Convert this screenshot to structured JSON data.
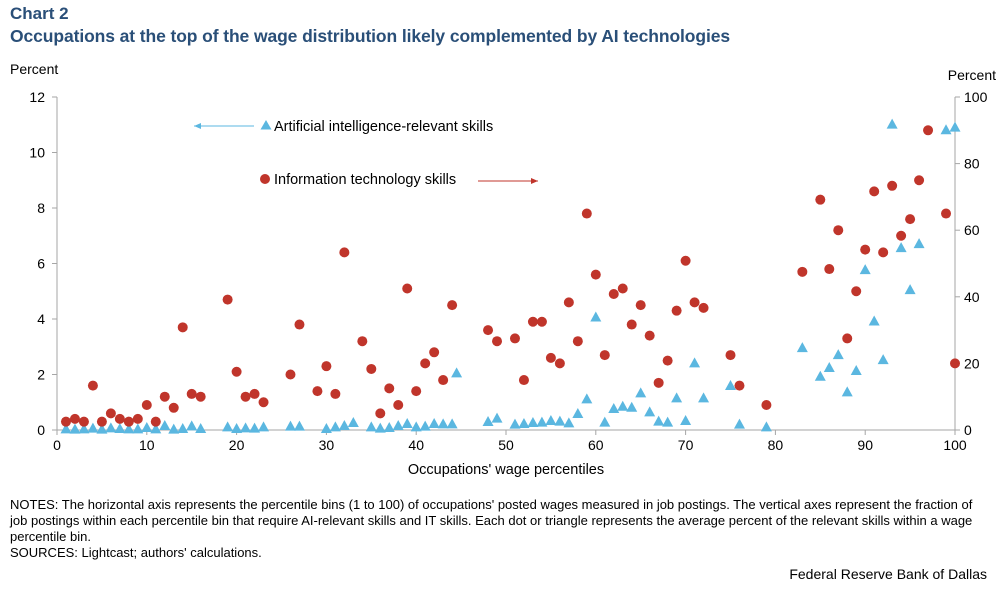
{
  "header": {
    "chart_label": "Chart 2",
    "title": "Occupations at the top of the wage distribution likely complemented by AI technologies"
  },
  "notes": {
    "text": "NOTES: The horizontal axis represents the percentile bins (1 to 100) of occupations' posted wages measured in job postings. The vertical axes represent the fraction of job postings within each percentile bin that require AI-relevant skills and IT skills. Each dot or triangle represents the average percent of the relevant skills within a wage percentile bin.",
    "sources": "SOURCES: Lightcast; authors' calculations."
  },
  "footer": {
    "organization": "Federal Reserve Bank of Dallas"
  },
  "colors": {
    "ai": "#5bb7e0",
    "it": "#c0352b",
    "title": "#2a4f78",
    "axis": "#a6a6a6"
  },
  "chart_data": {
    "type": "scatter",
    "xlabel": "Occupations' wage percentiles",
    "ylabel_left": "Percent",
    "ylabel_right": "Percent",
    "xlim": [
      0,
      100
    ],
    "ylim_left": [
      0,
      12
    ],
    "ylim_right": [
      0,
      100
    ],
    "x_ticks": [
      0,
      10,
      20,
      30,
      40,
      50,
      60,
      70,
      80,
      90,
      100
    ],
    "y_ticks_left": [
      0,
      2,
      4,
      6,
      8,
      10,
      12
    ],
    "y_ticks_right": [
      0,
      20,
      40,
      60,
      80,
      100
    ],
    "grid": false,
    "series": [
      {
        "name": "Artificial intelligence-relevant skills",
        "axis": "right",
        "marker": "triangle",
        "legend_arrow": "left",
        "points": [
          [
            1,
            0.2
          ],
          [
            2,
            0.1
          ],
          [
            3,
            0.2
          ],
          [
            4,
            0.4
          ],
          [
            5,
            0.1
          ],
          [
            6,
            0.5
          ],
          [
            7,
            0.3
          ],
          [
            8,
            0.2
          ],
          [
            9,
            0.2
          ],
          [
            10,
            0.6
          ],
          [
            11,
            0.2
          ],
          [
            12,
            1.2
          ],
          [
            13,
            0.1
          ],
          [
            14,
            0.3
          ],
          [
            15,
            1.1
          ],
          [
            16,
            0.3
          ],
          [
            19,
            0.8
          ],
          [
            20,
            0.3
          ],
          [
            21,
            0.5
          ],
          [
            22,
            0.4
          ],
          [
            23,
            0.8
          ],
          [
            26,
            1.0
          ],
          [
            27,
            1.0
          ],
          [
            30,
            0.3
          ],
          [
            31,
            0.8
          ],
          [
            32,
            1.2
          ],
          [
            33,
            2.1
          ],
          [
            35,
            0.8
          ],
          [
            36,
            0.4
          ],
          [
            37,
            0.6
          ],
          [
            38,
            1.2
          ],
          [
            39,
            1.8
          ],
          [
            40,
            0.8
          ],
          [
            41,
            1.0
          ],
          [
            42,
            1.8
          ],
          [
            43,
            1.7
          ],
          [
            44,
            1.7
          ],
          [
            44.5,
            17
          ],
          [
            48,
            2.4
          ],
          [
            49,
            3.4
          ],
          [
            51,
            1.6
          ],
          [
            52,
            1.8
          ],
          [
            53,
            2.1
          ],
          [
            54,
            2.2
          ],
          [
            55,
            2.7
          ],
          [
            56,
            2.5
          ],
          [
            57,
            2.0
          ],
          [
            58,
            4.8
          ],
          [
            59,
            9.2
          ],
          [
            60,
            33.8
          ],
          [
            61,
            2.2
          ],
          [
            62,
            6.3
          ],
          [
            63,
            7.0
          ],
          [
            64,
            6.7
          ],
          [
            65,
            11.0
          ],
          [
            66,
            5.3
          ],
          [
            67,
            2.5
          ],
          [
            68,
            2.2
          ],
          [
            69,
            9.5
          ],
          [
            70,
            2.7
          ],
          [
            71,
            20.0
          ],
          [
            72,
            9.5
          ],
          [
            75,
            13.2
          ],
          [
            76,
            1.6
          ],
          [
            79,
            0.8
          ],
          [
            83,
            24.6
          ],
          [
            85,
            16.0
          ],
          [
            86,
            18.6
          ],
          [
            87,
            22.5
          ],
          [
            88,
            11.3
          ],
          [
            89,
            17.7
          ],
          [
            90,
            48.0
          ],
          [
            91,
            32.6
          ],
          [
            92,
            21.0
          ],
          [
            93,
            91.7
          ],
          [
            94,
            54.6
          ],
          [
            95,
            42.0
          ],
          [
            96,
            55.8
          ],
          [
            99,
            90.0
          ],
          [
            100,
            90.8
          ]
        ]
      },
      {
        "name": "Information technology skills",
        "axis": "left",
        "marker": "circle",
        "legend_arrow": "right",
        "points": [
          [
            1,
            0.3
          ],
          [
            2,
            0.4
          ],
          [
            3,
            0.3
          ],
          [
            4,
            1.6
          ],
          [
            5,
            0.3
          ],
          [
            6,
            0.6
          ],
          [
            7,
            0.4
          ],
          [
            8,
            0.3
          ],
          [
            9,
            0.4
          ],
          [
            10,
            0.9
          ],
          [
            11,
            0.3
          ],
          [
            12,
            1.2
          ],
          [
            13,
            0.8
          ],
          [
            14,
            3.7
          ],
          [
            15,
            1.3
          ],
          [
            16,
            1.2
          ],
          [
            19,
            4.7
          ],
          [
            20,
            2.1
          ],
          [
            21,
            1.2
          ],
          [
            22,
            1.3
          ],
          [
            23,
            1.0
          ],
          [
            26,
            2.0
          ],
          [
            27,
            3.8
          ],
          [
            29,
            1.4
          ],
          [
            30,
            2.3
          ],
          [
            31,
            1.3
          ],
          [
            32,
            6.4
          ],
          [
            34,
            3.2
          ],
          [
            35,
            2.2
          ],
          [
            36,
            0.6
          ],
          [
            37,
            1.5
          ],
          [
            38,
            0.9
          ],
          [
            39,
            5.1
          ],
          [
            40,
            1.4
          ],
          [
            41,
            2.4
          ],
          [
            42,
            2.8
          ],
          [
            43,
            1.8
          ],
          [
            44,
            4.5
          ],
          [
            48,
            3.6
          ],
          [
            49,
            3.2
          ],
          [
            51,
            3.3
          ],
          [
            52,
            1.8
          ],
          [
            53,
            3.9
          ],
          [
            54,
            3.9
          ],
          [
            55,
            2.6
          ],
          [
            56,
            2.4
          ],
          [
            57,
            4.6
          ],
          [
            58,
            3.2
          ],
          [
            59,
            7.8
          ],
          [
            60,
            5.6
          ],
          [
            61,
            2.7
          ],
          [
            62,
            4.9
          ],
          [
            63,
            5.1
          ],
          [
            64,
            3.8
          ],
          [
            65,
            4.5
          ],
          [
            66,
            3.4
          ],
          [
            67,
            1.7
          ],
          [
            68,
            2.5
          ],
          [
            69,
            4.3
          ],
          [
            70,
            6.1
          ],
          [
            71,
            4.6
          ],
          [
            72,
            4.4
          ],
          [
            75,
            2.7
          ],
          [
            76,
            1.6
          ],
          [
            79,
            0.9
          ],
          [
            83,
            5.7
          ],
          [
            85,
            8.3
          ],
          [
            86,
            5.8
          ],
          [
            87,
            7.2
          ],
          [
            88,
            3.3
          ],
          [
            89,
            5.0
          ],
          [
            90,
            6.5
          ],
          [
            91,
            8.6
          ],
          [
            92,
            6.4
          ],
          [
            93,
            8.8
          ],
          [
            94,
            7.0
          ],
          [
            95,
            7.6
          ],
          [
            96,
            9.0
          ],
          [
            97,
            10.8
          ],
          [
            99,
            7.8
          ],
          [
            100,
            2.4
          ]
        ]
      }
    ]
  }
}
